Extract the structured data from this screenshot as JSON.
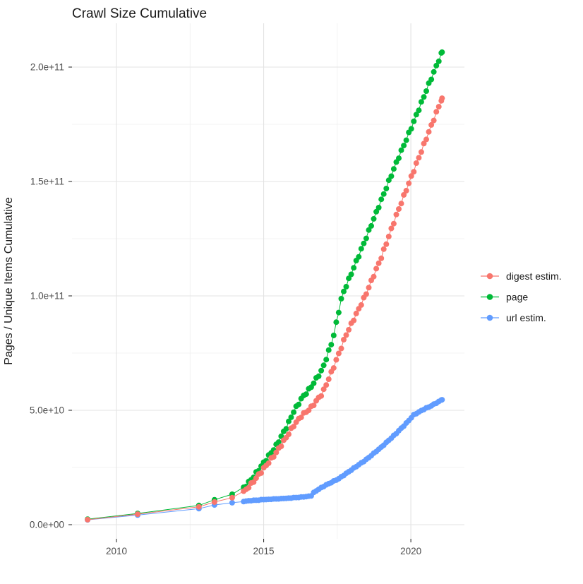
{
  "title": "Crawl Size Cumulative",
  "y_axis": {
    "title": "Pages / Unique Items Cumulative",
    "ticks": [
      {
        "label": "0.0e+00",
        "billion": 0
      },
      {
        "label": "5.0e+10",
        "billion": 50
      },
      {
        "label": "1.0e+11",
        "billion": 100
      },
      {
        "label": "1.5e+11",
        "billion": 150
      },
      {
        "label": "2.0e+11",
        "billion": 200
      }
    ],
    "minor_billion": [
      25,
      75,
      125,
      175
    ]
  },
  "x_axis": {
    "ticks": [
      {
        "label": "2010",
        "year": 2010
      },
      {
        "label": "2015",
        "year": 2015
      },
      {
        "label": "2020",
        "year": 2020
      }
    ],
    "minor_years": [
      2012.5,
      2017.5
    ]
  },
  "legend": {
    "items": [
      {
        "label": "digest estim.",
        "color": "#F8766D",
        "series_key": "digest"
      },
      {
        "label": "page",
        "color": "#00BA38",
        "series_key": "page"
      },
      {
        "label": "url estim.",
        "color": "#619CFF",
        "series_key": "url"
      }
    ]
  },
  "colors": {
    "digest": "#F8766D",
    "page": "#00BA38",
    "url": "#619CFF",
    "grid_major": "#E3E3E3",
    "grid_minor": "#EFEFEF",
    "tick_mark": "#333333",
    "tick_text": "#4d4d4d",
    "text": "#1a1a1a",
    "background": "#ffffff"
  },
  "chart_data": {
    "type": "scatter",
    "title": "Crawl Size Cumulative",
    "xlabel": "",
    "ylabel": "Pages / Unique Items Cumulative",
    "legend_position": "right",
    "grid": "on",
    "unit_note": "y values stored in billions (1e9); axis shows scientific notation",
    "x_range_years": [
      2008.44,
      2021.82
    ],
    "y_range_billion": [
      -6,
      219
    ],
    "sparse_years": [
      2009.02,
      2010.72,
      2012.8,
      2013.33,
      2013.93
    ],
    "sampling": {
      "dense_start_year": 2014.32,
      "dense_end_year": 2021.06,
      "step_years": 0.085
    },
    "series": [
      {
        "name": "digest estim.",
        "key": "digest",
        "color": "#F8766D",
        "jitter_billion": 0.55,
        "phase": 0.7,
        "anchors_year_billion": [
          [
            2009.02,
            2.2
          ],
          [
            2010.72,
            4.6
          ],
          [
            2012.8,
            7.8
          ],
          [
            2013.33,
            9.9
          ],
          [
            2013.93,
            11.8
          ],
          [
            2014.32,
            14.3
          ],
          [
            2014.6,
            18.0
          ],
          [
            2015.0,
            24.5
          ],
          [
            2015.4,
            31.0
          ],
          [
            2015.81,
            39.0
          ],
          [
            2016.0,
            43.0
          ],
          [
            2016.28,
            47.5
          ],
          [
            2016.6,
            51.0
          ],
          [
            2017.0,
            57.5
          ],
          [
            2017.35,
            68.0
          ],
          [
            2017.8,
            83.0
          ],
          [
            2018.45,
            100.0
          ],
          [
            2019.0,
            117.0
          ],
          [
            2019.5,
            135.0
          ],
          [
            2020.5,
            168.0
          ],
          [
            2021.06,
            186.4
          ]
        ]
      },
      {
        "name": "page",
        "key": "page",
        "color": "#00BA38",
        "jitter_billion": 0.55,
        "phase": 2.4,
        "anchors_year_billion": [
          [
            2009.02,
            2.4
          ],
          [
            2010.72,
            4.9
          ],
          [
            2012.8,
            8.4
          ],
          [
            2013.33,
            10.9
          ],
          [
            2013.93,
            13.3
          ],
          [
            2014.32,
            16.0
          ],
          [
            2014.6,
            20.0
          ],
          [
            2015.0,
            27.0
          ],
          [
            2015.4,
            34.0
          ],
          [
            2015.81,
            43.5
          ],
          [
            2016.0,
            49.0
          ],
          [
            2016.28,
            55.0
          ],
          [
            2016.6,
            60.0
          ],
          [
            2017.0,
            68.0
          ],
          [
            2017.35,
            81.0
          ],
          [
            2017.66,
            100.0
          ],
          [
            2018.0,
            110.5
          ],
          [
            2018.5,
            126.0
          ],
          [
            2019.0,
            142.0
          ],
          [
            2019.25,
            150.0
          ],
          [
            2019.5,
            158.0
          ],
          [
            2020.0,
            173.0
          ],
          [
            2020.5,
            189.0
          ],
          [
            2021.06,
            206.5
          ]
        ]
      },
      {
        "name": "url estim.",
        "key": "url",
        "color": "#619CFF",
        "jitter_billion": 0.14,
        "phase": 4.1,
        "anchors_year_billion": [
          [
            2009.02,
            2.1
          ],
          [
            2010.72,
            4.2
          ],
          [
            2012.8,
            7.0
          ],
          [
            2013.33,
            8.6
          ],
          [
            2013.93,
            9.6
          ],
          [
            2014.32,
            10.2
          ],
          [
            2015.0,
            10.9
          ],
          [
            2015.6,
            11.3
          ],
          [
            2016.0,
            11.7
          ],
          [
            2016.45,
            12.2
          ],
          [
            2016.62,
            12.7
          ],
          [
            2016.72,
            14.3
          ],
          [
            2017.07,
            17.0
          ],
          [
            2017.55,
            20.1
          ],
          [
            2018.03,
            24.4
          ],
          [
            2018.51,
            28.7
          ],
          [
            2019.0,
            33.9
          ],
          [
            2019.47,
            39.5
          ],
          [
            2019.83,
            44.1
          ],
          [
            2020.1,
            48.0
          ],
          [
            2020.45,
            50.5
          ],
          [
            2020.7,
            52.0
          ],
          [
            2021.06,
            54.6
          ]
        ]
      }
    ]
  }
}
